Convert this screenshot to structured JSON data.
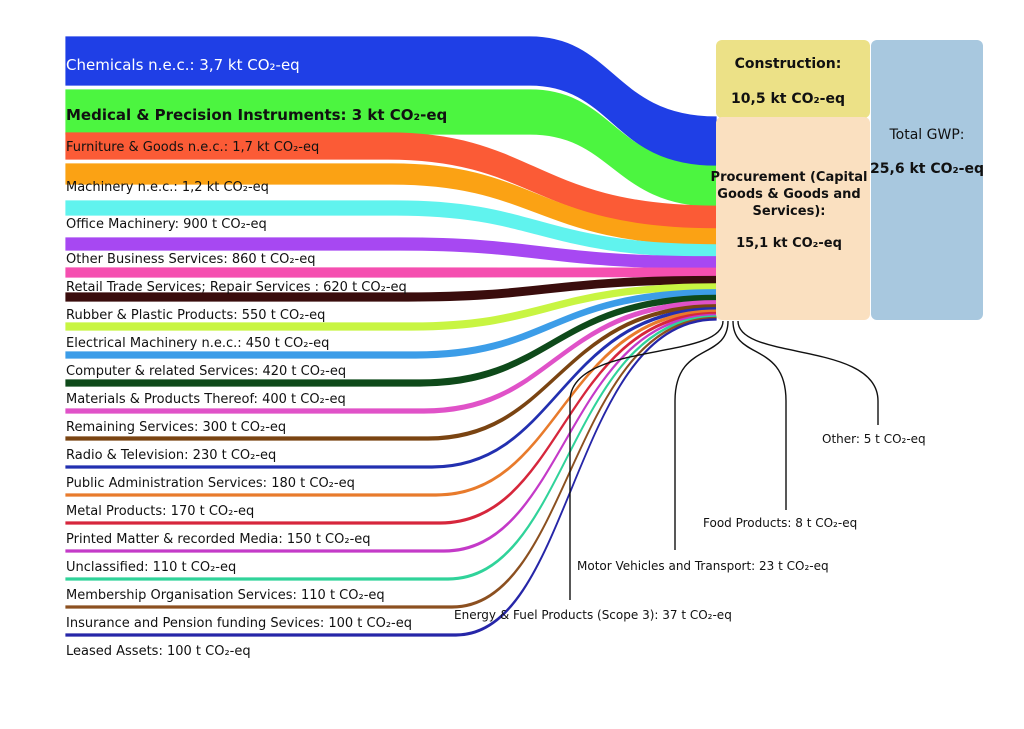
{
  "flows": [
    {
      "label": "Chemicals n.e.c.: 3,7 kt CO₂-eq",
      "color": "#1f3fe6",
      "value_t": 3700,
      "text_color": "#ffffff"
    },
    {
      "label": "Medical & Precision Instruments: 3 kt CO₂-eq",
      "color": "#4cf540",
      "value_t": 3000,
      "text_color": "#111111"
    },
    {
      "label": "Furniture & Goods n.e.c.: 1,7 kt CO₂-eq",
      "color": "#fb5b36",
      "value_t": 1700,
      "text_color": "#111111"
    },
    {
      "label": "Machinery n.e.c.: 1,2 kt CO₂-eq",
      "color": "#fba214",
      "value_t": 1200,
      "text_color": "#111111"
    },
    {
      "label": "Office Machinery: 900 t CO₂-eq",
      "color": "#60f3ee",
      "value_t": 900,
      "text_color": "#111111"
    },
    {
      "label": "Other Business Services: 860 t CO₂-eq",
      "color": "#a748f2",
      "value_t": 860,
      "text_color": "#111111"
    },
    {
      "label": "Retail Trade Services; Repair Services : 620 t CO₂-eq",
      "color": "#f54fb0",
      "value_t": 620,
      "text_color": "#111111"
    },
    {
      "label": "Rubber & Plastic Products: 550 t CO₂-eq",
      "color": "#3a0d0d",
      "value_t": 550,
      "text_color": "#111111"
    },
    {
      "label": "Electrical Machinery n.e.c.: 450 t CO₂-eq",
      "color": "#c8f542",
      "value_t": 450,
      "text_color": "#111111"
    },
    {
      "label": "Computer & related Services: 420 t CO₂-eq",
      "color": "#3c9de8",
      "value_t": 420,
      "text_color": "#111111"
    },
    {
      "label": "Materials & Products Thereof: 400 t CO₂-eq",
      "color": "#0e4a1a",
      "value_t": 400,
      "text_color": "#111111"
    },
    {
      "label": "Remaining Services: 300 t CO₂-eq",
      "color": "#e052c8",
      "value_t": 300,
      "text_color": "#111111"
    },
    {
      "label": "Radio & Television: 230 t CO₂-eq",
      "color": "#7a4412",
      "value_t": 230,
      "text_color": "#111111"
    },
    {
      "label": "Public Administration Services: 180 t CO₂-eq",
      "color": "#2330b0",
      "value_t": 180,
      "text_color": "#111111"
    },
    {
      "label": "Metal Products: 170 t CO₂-eq",
      "color": "#e87b2c",
      "value_t": 170,
      "text_color": "#111111"
    },
    {
      "label": "Printed Matter & recorded Media: 150 t CO₂-eq",
      "color": "#d6273c",
      "value_t": 150,
      "text_color": "#111111"
    },
    {
      "label": "Unclassified: 110 t CO₂-eq",
      "color": "#c43ac8",
      "value_t": 110,
      "text_color": "#111111"
    },
    {
      "label": "Membership Organisation Services: 110 t CO₂-eq",
      "color": "#30d39a",
      "value_t": 110,
      "text_color": "#111111"
    },
    {
      "label": "Insurance and Pension funding Sevices: 100 t CO₂-eq",
      "color": "#8c5020",
      "value_t": 100,
      "text_color": "#111111"
    },
    {
      "label": "Leased Assets: 100 t CO₂-eq",
      "color": "#2626a8",
      "value_t": 100,
      "text_color": "#111111"
    }
  ],
  "small_flows": [
    {
      "label": "Energy & Fuel Products (Scope 3): 37 t CO₂-eq",
      "value_t": 37
    },
    {
      "label": "Motor Vehicles and Transport: 23 t CO₂-eq",
      "value_t": 23
    },
    {
      "label": "Food Products: 8 t CO₂-eq",
      "value_t": 8
    },
    {
      "label": "Other: 5 t CO₂-eq",
      "value_t": 5
    }
  ],
  "nodes": {
    "construction": {
      "title": "Construction:",
      "value": "10,5 kt CO₂-eq",
      "color": "#ece187"
    },
    "procurement": {
      "title_lines": [
        "Procurement (Capital",
        "Goods & Goods and",
        "Services):"
      ],
      "value": "15,1 kt CO₂-eq",
      "color": "#fae0c0"
    },
    "total": {
      "title": "Total GWP:",
      "value": "25,6 kt CO₂-eq",
      "color": "#a8c8df"
    }
  }
}
